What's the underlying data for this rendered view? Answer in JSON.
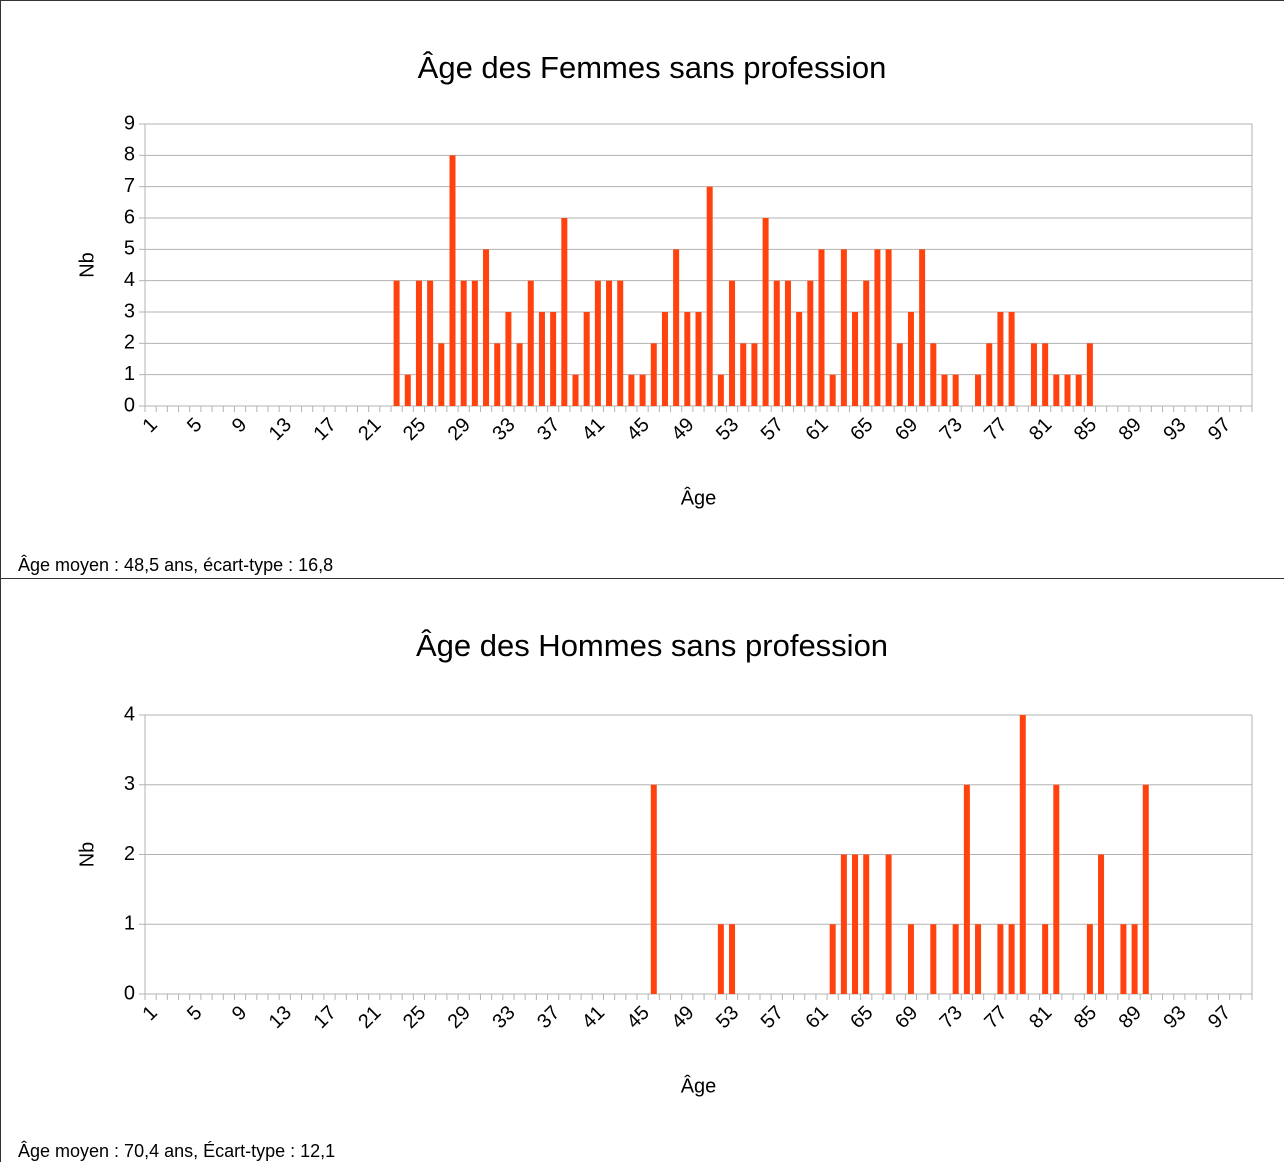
{
  "chart_data": [
    {
      "type": "bar",
      "title": "Âge des Femmes sans profession",
      "x_label": "Âge",
      "y_label": "Nb",
      "note": "Âge moyen : 48,5 ans, écart-type : 16,8",
      "color": "#ff420e",
      "grid": true,
      "categories": [
        1,
        null,
        null,
        null,
        5,
        null,
        null,
        null,
        9,
        null,
        null,
        null,
        13,
        null,
        null,
        null,
        17,
        null,
        null,
        null,
        21,
        null,
        null,
        null,
        25,
        null,
        null,
        null,
        29,
        null,
        null,
        null,
        33,
        null,
        null,
        null,
        37,
        null,
        null,
        null,
        41,
        null,
        null,
        null,
        45,
        null,
        null,
        null,
        49,
        null,
        null,
        null,
        53,
        null,
        null,
        null,
        57,
        null,
        null,
        null,
        61,
        null,
        null,
        null,
        65,
        null,
        null,
        null,
        69,
        null,
        null,
        null,
        73,
        null,
        null,
        null,
        77,
        null,
        null,
        null,
        81,
        null,
        null,
        null,
        85,
        null,
        null,
        null,
        89,
        null,
        null,
        null,
        93,
        null,
        null,
        null,
        97,
        null,
        null
      ],
      "values": [
        0,
        0,
        0,
        0,
        0,
        0,
        0,
        0,
        0,
        0,
        0,
        0,
        0,
        0,
        0,
        0,
        0,
        0,
        0,
        0,
        0,
        0,
        4,
        1,
        4,
        4,
        2,
        8,
        4,
        4,
        5,
        2,
        3,
        2,
        4,
        3,
        3,
        6,
        1,
        3,
        4,
        4,
        4,
        1,
        1,
        2,
        3,
        5,
        3,
        3,
        7,
        1,
        4,
        2,
        2,
        6,
        4,
        4,
        3,
        4,
        5,
        1,
        5,
        3,
        4,
        5,
        5,
        2,
        3,
        5,
        2,
        1,
        1,
        0,
        1,
        2,
        3,
        3,
        0,
        2,
        2,
        1,
        1,
        1,
        2,
        0,
        0,
        0,
        0,
        0,
        0,
        0,
        0,
        0,
        0,
        0,
        0,
        0,
        0
      ],
      "ylim": [
        0,
        9
      ],
      "yticks": [
        0,
        1,
        2,
        3,
        4,
        5,
        6,
        7,
        8,
        9
      ]
    },
    {
      "type": "bar",
      "title": "Âge des Hommes sans profession",
      "x_label": "Âge",
      "y_label": "Nb",
      "note": "Âge moyen : 70,4 ans, Écart-type : 12,1",
      "color": "#ff420e",
      "grid": true,
      "categories": [
        1,
        null,
        null,
        null,
        5,
        null,
        null,
        null,
        9,
        null,
        null,
        null,
        13,
        null,
        null,
        null,
        17,
        null,
        null,
        null,
        21,
        null,
        null,
        null,
        25,
        null,
        null,
        null,
        29,
        null,
        null,
        null,
        33,
        null,
        null,
        null,
        37,
        null,
        null,
        null,
        41,
        null,
        null,
        null,
        45,
        null,
        null,
        null,
        49,
        null,
        null,
        null,
        53,
        null,
        null,
        null,
        57,
        null,
        null,
        null,
        61,
        null,
        null,
        null,
        65,
        null,
        null,
        null,
        69,
        null,
        null,
        null,
        73,
        null,
        null,
        null,
        77,
        null,
        null,
        null,
        81,
        null,
        null,
        null,
        85,
        null,
        null,
        null,
        89,
        null,
        null,
        null,
        93,
        null,
        null,
        null,
        97,
        null,
        null
      ],
      "values": [
        0,
        0,
        0,
        0,
        0,
        0,
        0,
        0,
        0,
        0,
        0,
        0,
        0,
        0,
        0,
        0,
        0,
        0,
        0,
        0,
        0,
        0,
        0,
        0,
        0,
        0,
        0,
        0,
        0,
        0,
        0,
        0,
        0,
        0,
        0,
        0,
        0,
        0,
        0,
        0,
        0,
        0,
        0,
        0,
        0,
        3,
        0,
        0,
        0,
        0,
        0,
        1,
        1,
        0,
        0,
        0,
        0,
        0,
        0,
        0,
        0,
        1,
        2,
        2,
        2,
        0,
        2,
        0,
        1,
        0,
        1,
        0,
        1,
        3,
        1,
        0,
        1,
        1,
        4,
        0,
        1,
        3,
        0,
        0,
        1,
        2,
        0,
        1,
        1,
        3,
        0,
        0,
        0,
        0,
        0,
        0,
        0,
        0,
        0
      ],
      "ylim": [
        0,
        4
      ],
      "yticks": [
        0,
        1,
        2,
        3,
        4
      ]
    }
  ]
}
